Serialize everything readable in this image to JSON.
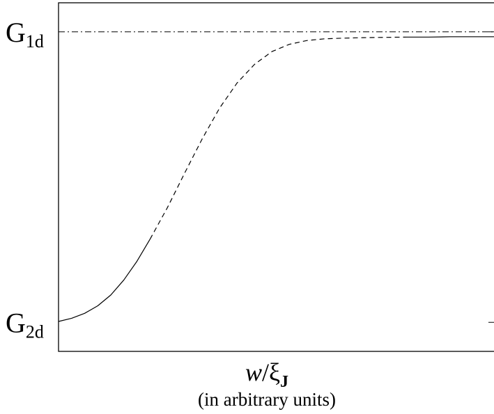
{
  "chart_data": {
    "type": "line",
    "title": "",
    "xlabel": {
      "main": "w",
      "slash": "/",
      "symbol": "ξ",
      "subscript": "J",
      "note": "(in arbitrary units)"
    },
    "ylabel": "",
    "y_ticks": [
      {
        "name": "G",
        "sub": "1d",
        "value": 1.0
      },
      {
        "name": "G",
        "sub": "2d",
        "value": 0.0
      }
    ],
    "xlim": [
      0,
      1
    ],
    "ylim": [
      -0.1,
      1.1
    ],
    "reference_line": {
      "value": 1.0,
      "style": "dash-dot"
    },
    "series": [
      {
        "style": "solid",
        "x": [
          0.0,
          0.03,
          0.06,
          0.09,
          0.12,
          0.15,
          0.18,
          0.21
        ],
        "y": [
          0.003,
          0.014,
          0.031,
          0.057,
          0.094,
          0.146,
          0.21,
          0.286
        ]
      },
      {
        "style": "dashed",
        "x": [
          0.21,
          0.25,
          0.29,
          0.33,
          0.37,
          0.41,
          0.45,
          0.49,
          0.53,
          0.57,
          0.61,
          0.65,
          0.7,
          0.75,
          0.8
        ],
        "y": [
          0.286,
          0.395,
          0.515,
          0.632,
          0.738,
          0.824,
          0.888,
          0.932,
          0.957,
          0.97,
          0.976,
          0.978,
          0.98,
          0.981,
          0.982
        ]
      },
      {
        "style": "solid",
        "x": [
          0.8,
          0.85,
          0.9,
          0.95,
          1.0
        ],
        "y": [
          0.982,
          0.982,
          0.983,
          0.983,
          0.983
        ]
      }
    ],
    "grid": false,
    "legend": "none"
  }
}
